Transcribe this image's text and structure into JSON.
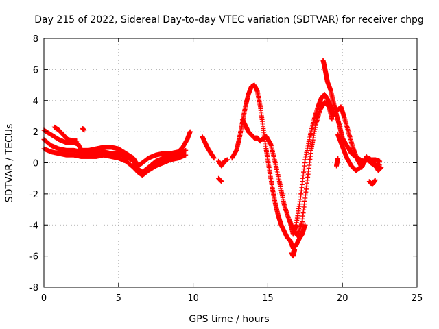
{
  "chart_data": {
    "type": "scatter",
    "title": "Day 215 of 2022, Sidereal Day-to-day VTEC variation (SDTVAR) for receiver chpg",
    "xlabel": "GPS time / hours",
    "ylabel": "SDTVAR / TECUs",
    "xlim": [
      0,
      25
    ],
    "ylim": [
      -8,
      8
    ],
    "x_ticks": [
      0,
      5,
      10,
      15,
      20,
      25
    ],
    "y_ticks": [
      -8,
      -6,
      -4,
      -2,
      0,
      2,
      4,
      6,
      8
    ],
    "grid": true,
    "marker": "+",
    "color": "#ff0000",
    "series": [
      {
        "name": "s1",
        "x": [
          0.0,
          0.5,
          1.0,
          1.5,
          2.0,
          2.3,
          2.5,
          3.0,
          3.5,
          4.0,
          4.5,
          5.0,
          5.5,
          6.0,
          6.3,
          6.6,
          7.0,
          7.5,
          8.0,
          8.5,
          9.0,
          9.3,
          9.6,
          9.8
        ],
        "y": [
          2.1,
          1.8,
          1.5,
          1.3,
          1.3,
          1.2,
          0.8,
          0.8,
          0.9,
          1.0,
          1.0,
          0.9,
          0.6,
          0.3,
          -0.2,
          0.0,
          0.3,
          0.5,
          0.6,
          0.6,
          0.7,
          1.0,
          1.5,
          2.0
        ]
      },
      {
        "name": "s2",
        "x": [
          0.0,
          0.5,
          1.0,
          1.5,
          2.0,
          2.5,
          3.0,
          3.5,
          4.0,
          4.5,
          5.0,
          5.5,
          6.0,
          6.3,
          6.6,
          7.0,
          7.5,
          8.0,
          8.5,
          9.0,
          9.5
        ],
        "y": [
          1.5,
          1.1,
          0.9,
          0.8,
          0.8,
          0.7,
          0.6,
          0.6,
          0.7,
          0.6,
          0.6,
          0.4,
          0.1,
          -0.4,
          -0.6,
          -0.3,
          0.1,
          0.3,
          0.4,
          0.5,
          0.8
        ]
      },
      {
        "name": "s3",
        "x": [
          0.0,
          0.5,
          1.0,
          1.5,
          2.0,
          2.5,
          3.0,
          3.5,
          4.0,
          4.5,
          5.0,
          5.5,
          6.0,
          6.3,
          6.6,
          7.0,
          7.5,
          8.0,
          8.5,
          9.0,
          9.5
        ],
        "y": [
          0.9,
          0.7,
          0.6,
          0.5,
          0.5,
          0.4,
          0.4,
          0.4,
          0.5,
          0.4,
          0.3,
          0.1,
          -0.3,
          -0.6,
          -0.8,
          -0.5,
          -0.2,
          0.0,
          0.2,
          0.3,
          0.5
        ]
      },
      {
        "name": "s4",
        "x": [
          0.7,
          1.0,
          1.3,
          1.6,
          2.0,
          2.2
        ],
        "y": [
          2.3,
          2.1,
          1.8,
          1.5,
          1.4,
          1.4
        ]
      },
      {
        "name": "s5",
        "x": [
          2.6,
          2.7
        ],
        "y": [
          2.2,
          2.1
        ]
      },
      {
        "name": "s6",
        "x": [
          10.6,
          10.8,
          11.0,
          11.2,
          11.4
        ],
        "y": [
          1.7,
          1.3,
          0.9,
          0.6,
          0.3
        ]
      },
      {
        "name": "s7",
        "x": [
          11.7,
          11.9,
          12.1,
          12.3
        ],
        "y": [
          0.1,
          -0.2,
          0.1,
          0.2
        ]
      },
      {
        "name": "s8",
        "x": [
          11.7,
          11.9
        ],
        "y": [
          -1.0,
          -1.2
        ]
      },
      {
        "name": "s9",
        "x": [
          12.6,
          12.9,
          13.1,
          13.3,
          13.5,
          13.7,
          13.9,
          14.1,
          14.3,
          14.5,
          14.7,
          14.9,
          15.1,
          15.3,
          15.5,
          15.7,
          15.9,
          16.1,
          16.3,
          16.5,
          16.7,
          16.9,
          17.1,
          17.3,
          17.5
        ],
        "y": [
          0.3,
          0.8,
          1.6,
          2.6,
          3.6,
          4.4,
          4.9,
          5.0,
          4.6,
          3.6,
          2.2,
          0.8,
          -0.4,
          -1.6,
          -2.6,
          -3.4,
          -4.0,
          -4.4,
          -4.8,
          -5.0,
          -5.5,
          -5.3,
          -4.9,
          -4.6,
          -4.0
        ]
      },
      {
        "name": "s10",
        "x": [
          13.3,
          13.5,
          13.7,
          13.9,
          14.1,
          14.3,
          14.5
        ],
        "y": [
          2.8,
          2.4,
          2.0,
          1.8,
          1.6,
          1.6,
          1.4
        ]
      },
      {
        "name": "s11",
        "x": [
          14.6,
          14.9,
          15.2,
          15.5,
          15.8,
          16.1,
          16.4,
          16.7,
          17.0,
          17.3,
          17.6,
          17.9,
          18.2,
          18.5,
          18.8,
          19.1,
          19.3
        ],
        "y": [
          1.5,
          1.7,
          1.2,
          0.0,
          -1.3,
          -2.7,
          -3.6,
          -4.3,
          -4.7,
          -3.8,
          -1.5,
          0.8,
          2.4,
          3.4,
          3.9,
          3.6,
          2.8
        ]
      },
      {
        "name": "s12",
        "x": [
          16.5,
          16.7,
          16.9,
          17.2,
          17.5,
          17.8,
          18.1,
          18.4,
          18.6,
          18.8,
          19.0,
          19.2,
          19.4
        ],
        "y": [
          -3.8,
          -4.6,
          -4.0,
          -2.2,
          0.2,
          1.6,
          2.8,
          3.7,
          4.2,
          4.4,
          4.1,
          3.6,
          3.0
        ]
      },
      {
        "name": "s13",
        "x": [
          16.6,
          16.7,
          16.8
        ],
        "y": [
          -5.8,
          -6.0,
          -5.6
        ]
      },
      {
        "name": "s14",
        "x": [
          18.7,
          18.8,
          18.9,
          19.0,
          19.2,
          19.4,
          19.6,
          19.8,
          20.0,
          20.3,
          20.6,
          21.0,
          21.4,
          21.8,
          22.2,
          22.5
        ],
        "y": [
          6.6,
          6.2,
          5.7,
          5.2,
          4.7,
          3.9,
          3.1,
          2.4,
          1.6,
          1.1,
          0.6,
          0.3,
          0.1,
          0.2,
          0.2,
          0.1
        ]
      },
      {
        "name": "s15",
        "x": [
          19.5,
          19.7,
          19.9,
          20.1,
          20.4,
          20.7,
          21.0,
          21.3,
          21.6,
          21.9,
          22.2,
          22.5
        ],
        "y": [
          3.5,
          3.4,
          3.6,
          3.0,
          2.0,
          1.0,
          0.2,
          -0.3,
          0.4,
          0.0,
          -0.2,
          -0.1
        ]
      },
      {
        "name": "s16",
        "x": [
          19.7,
          19.9,
          20.1,
          20.3,
          20.6,
          20.9,
          21.2,
          21.5,
          21.8,
          22.1,
          22.4,
          22.6
        ],
        "y": [
          1.8,
          1.3,
          0.8,
          0.3,
          -0.2,
          -0.5,
          -0.3,
          0.1,
          0.3,
          0.0,
          -0.5,
          -0.3
        ]
      },
      {
        "name": "s17",
        "x": [
          21.8,
          22.0,
          22.2
        ],
        "y": [
          -1.2,
          -1.4,
          -1.1
        ]
      },
      {
        "name": "s18",
        "x": [
          19.6,
          19.7
        ],
        "y": [
          -0.2,
          0.3
        ]
      }
    ]
  }
}
